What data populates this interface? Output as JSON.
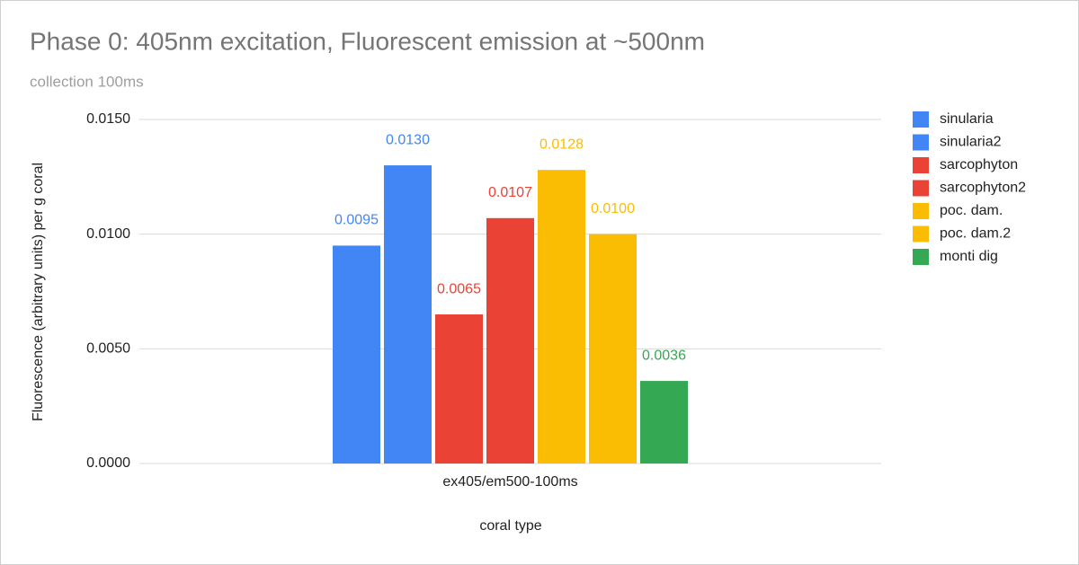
{
  "chart_data": {
    "type": "bar",
    "title": "Phase 0: 405nm excitation, Fluorescent emission at ~500nm",
    "subtitle": "collection 100ms",
    "x_label": "coral type",
    "y_label": "Fluorescence (arbitrary units) per g coral",
    "categories": [
      "ex405/em500-100ms"
    ],
    "series": [
      {
        "name": "sinularia",
        "color": "#4285f4",
        "values": [
          0.0095
        ]
      },
      {
        "name": "sinularia2",
        "color": "#4285f4",
        "values": [
          0.013
        ],
        "value_labels": [
          "0.0130"
        ]
      },
      {
        "name": "sarcophyton",
        "color": "#ea4335",
        "values": [
          0.0065
        ]
      },
      {
        "name": "sarcophyton2",
        "color": "#ea4335",
        "values": [
          0.0107
        ]
      },
      {
        "name": "poc. dam.",
        "color": "#fbbc04",
        "values": [
          0.0128
        ]
      },
      {
        "name": "poc. dam.2",
        "color": "#fbbc04",
        "values": [
          0.01
        ],
        "value_labels": [
          "0.0100"
        ]
      },
      {
        "name": "monti dig",
        "color": "#34a853",
        "values": [
          0.0036
        ]
      }
    ],
    "ylim": [
      0,
      0.015
    ],
    "yticks": [
      {
        "value": 0,
        "label": "0.0000"
      },
      {
        "value": 0.005,
        "label": "0.0050"
      },
      {
        "value": 0.01,
        "label": "0.0100"
      },
      {
        "value": 0.015,
        "label": "0.0150"
      }
    ],
    "grid": true,
    "legend": "right"
  }
}
